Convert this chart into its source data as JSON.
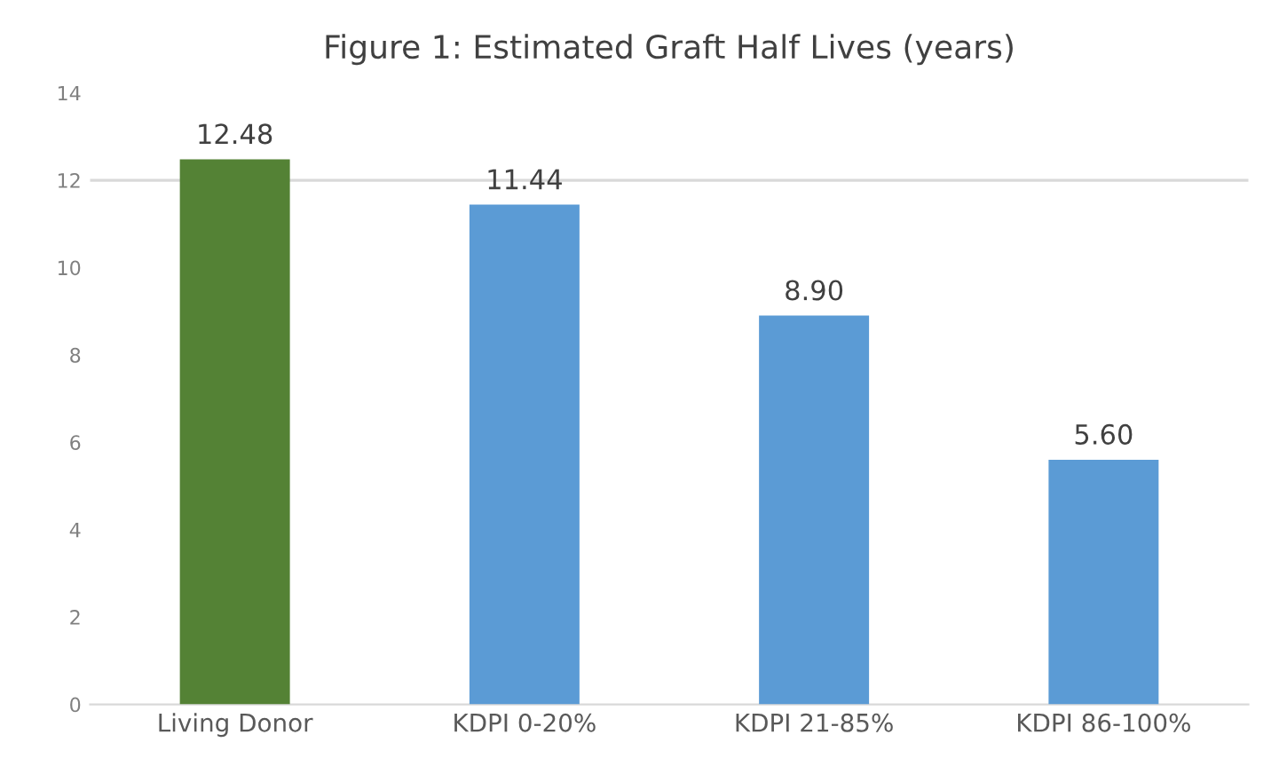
{
  "chart_data": {
    "type": "bar",
    "title": "Figure 1: Estimated Graft Half Lives (years)",
    "categories": [
      "Living Donor",
      "KDPI 0-20%",
      "KDPI 21-85%",
      "KDPI 86-100%"
    ],
    "values": [
      12.48,
      11.44,
      8.9,
      5.6
    ],
    "value_labels": [
      "12.48",
      "11.44",
      "8.90",
      "5.60"
    ],
    "colors": [
      "#548235",
      "#5b9bd5",
      "#5b9bd5",
      "#5b9bd5"
    ],
    "ylim": [
      0,
      14
    ],
    "yticks": [
      0,
      2,
      4,
      6,
      8,
      10,
      12,
      14
    ],
    "ref_lines": [
      {
        "axis": "y",
        "value": 12,
        "label": null,
        "color": "#d9d9d9"
      }
    ],
    "grid": false,
    "legend": false
  }
}
